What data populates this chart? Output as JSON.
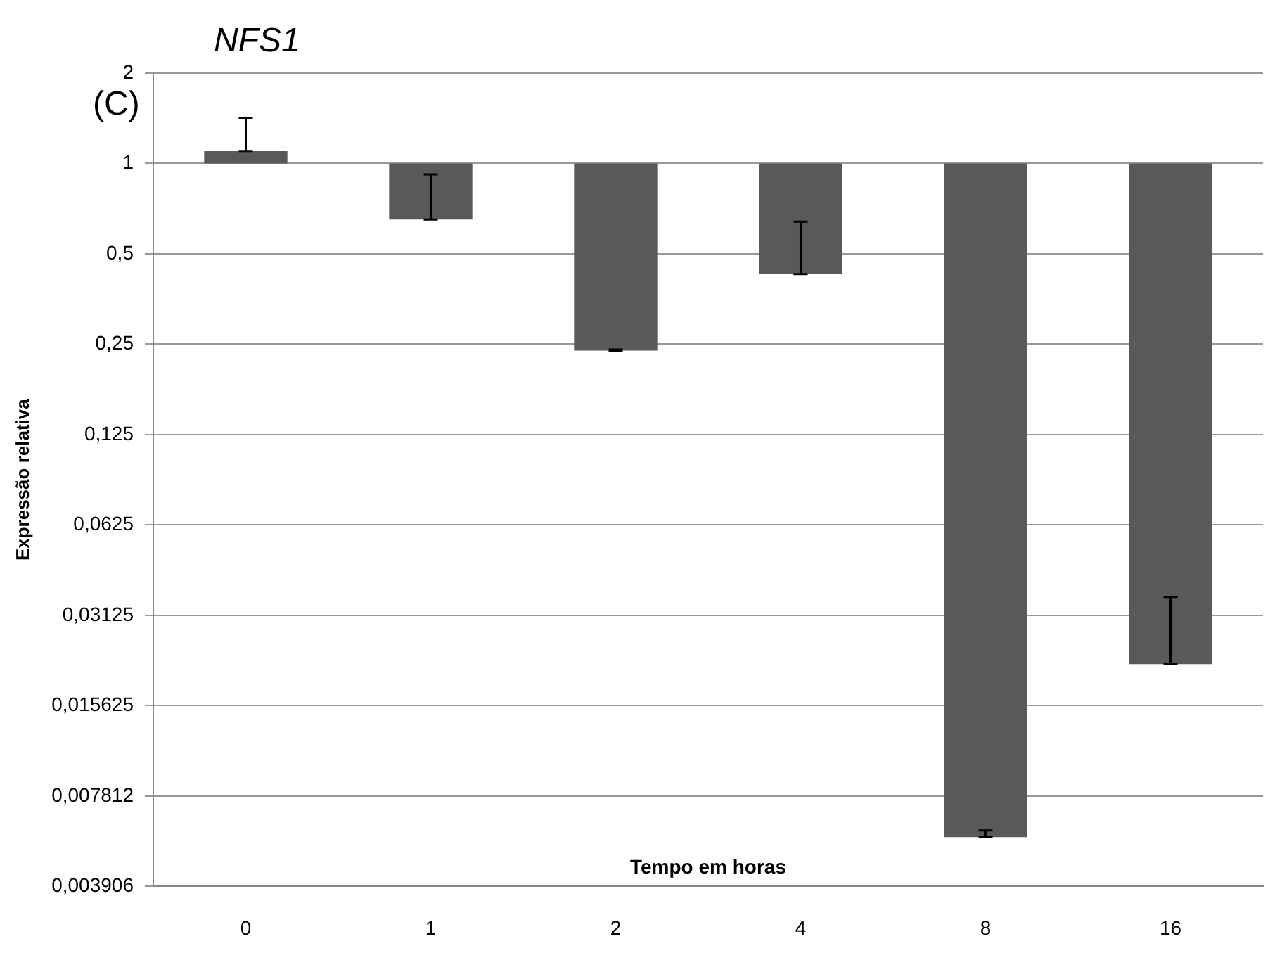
{
  "chart_data": {
    "type": "bar",
    "title": "NFS1",
    "annotations": [
      "(C)"
    ],
    "xlabel": "Tempo em horas",
    "ylabel": "Expressão relativa",
    "categories": [
      "0",
      "1",
      "2",
      "4",
      "8",
      "16"
    ],
    "values": [
      0.1,
      -0.35,
      -0.762,
      -0.572,
      -0.9943,
      -0.9785
    ],
    "base": [
      1,
      1,
      1,
      1,
      1,
      1
    ],
    "errors": [
      [
        1.1,
        1.42
      ],
      [
        0.65,
        0.92
      ],
      [
        0.238,
        0.24
      ],
      [
        0.428,
        0.64
      ],
      [
        0.0057,
        0.006
      ],
      [
        0.0215,
        0.036
      ]
    ],
    "color": "#595959",
    "log": true,
    "grid": "y",
    "legend": false,
    "ylim": [
      0.00390625,
      2
    ],
    "yticks": [
      {
        "value": 0.00390625,
        "label": "0,003906"
      },
      {
        "value": 0.0078125,
        "label": "0,007812"
      },
      {
        "value": 0.015625,
        "label": "0,015625"
      },
      {
        "value": 0.03125,
        "label": "0,03125"
      },
      {
        "value": 0.0625,
        "label": "0,0625"
      },
      {
        "value": 0.125,
        "label": "0,125"
      },
      {
        "value": 0.25,
        "label": "0,25"
      },
      {
        "value": 0.5,
        "label": "0,5"
      },
      {
        "value": 1,
        "label": "1"
      },
      {
        "value": 2,
        "label": "2"
      }
    ]
  }
}
